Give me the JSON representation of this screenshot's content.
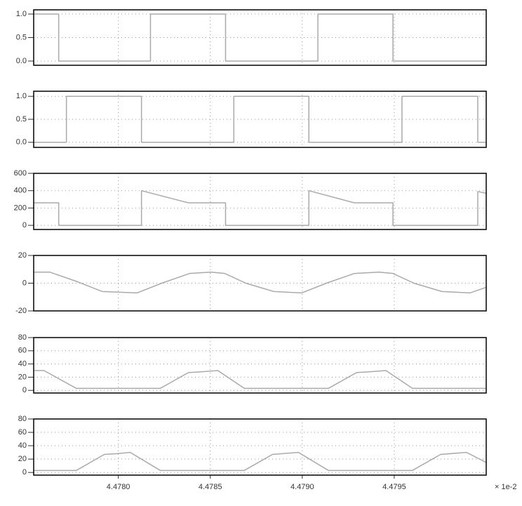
{
  "chart_data": [
    {
      "type": "line",
      "color": "#aaaaaa",
      "xlim": [
        4.47754,
        4.48
      ],
      "ylim": [
        -0.09,
        1.09
      ],
      "yticks": [
        {
          "value": 1,
          "label": "1.0"
        },
        {
          "value": 0.5,
          "label": "0.5"
        },
        {
          "value": 0,
          "label": "0.0"
        }
      ],
      "x": [
        4.47754,
        4.477676,
        4.477676,
        4.478175,
        4.478175,
        4.478583,
        4.478583,
        4.479085,
        4.479085,
        4.479493,
        4.479493,
        4.48
      ],
      "values": [
        1,
        1,
        0,
        0,
        1,
        1,
        0,
        0,
        1,
        1,
        0,
        0
      ]
    },
    {
      "type": "line",
      "color": "#aaaaaa",
      "xlim": [
        4.47754,
        4.48
      ],
      "ylim": [
        -0.11,
        1.11
      ],
      "yticks": [
        {
          "value": 1,
          "label": "1.0"
        },
        {
          "value": 0.5,
          "label": "0.5"
        },
        {
          "value": 0,
          "label": "0.0"
        }
      ],
      "x": [
        4.47754,
        4.477718,
        4.477718,
        4.478126,
        4.478126,
        4.478628,
        4.478628,
        4.479036,
        4.479036,
        4.479542,
        4.479542,
        4.479954,
        4.479954,
        4.48
      ],
      "values": [
        0,
        0,
        1,
        1,
        0,
        0,
        1,
        1,
        0,
        0,
        1,
        1,
        0,
        0
      ]
    },
    {
      "type": "line",
      "color": "#aaaaaa",
      "xlim": [
        4.47754,
        4.48
      ],
      "ylim": [
        -48,
        600
      ],
      "yticks": [
        600,
        400,
        200,
        0
      ],
      "x": [
        4.47754,
        4.477676,
        4.477676,
        4.478126,
        4.478126,
        4.478381,
        4.478583,
        4.478583,
        4.479036,
        4.479036,
        4.479283,
        4.479493,
        4.479493,
        4.479954,
        4.479954,
        4.48
      ],
      "values": [
        260,
        260,
        0,
        0,
        400,
        260,
        260,
        0,
        0,
        400,
        260,
        260,
        0,
        0,
        390,
        370
      ]
    },
    {
      "type": "line",
      "color": "#aaaaaa",
      "xlim": [
        4.47754,
        4.48
      ],
      "ylim": [
        -20,
        20
      ],
      "yticks": [
        20,
        0,
        -20
      ],
      "x": [
        4.47754,
        4.477627,
        4.477779,
        4.477912,
        4.478103,
        4.478236,
        4.478388,
        4.478503,
        4.478579,
        4.478693,
        4.478845,
        4.478998,
        4.479131,
        4.479283,
        4.479417,
        4.479493,
        4.479607,
        4.479759,
        4.479912,
        4.48
      ],
      "values": [
        8,
        8,
        1,
        -6,
        -7,
        0,
        7,
        8,
        7,
        0,
        -6,
        -7,
        0,
        7,
        8,
        7,
        0,
        -6,
        -7,
        -3
      ]
    },
    {
      "type": "line",
      "color": "#aaaaaa",
      "xlim": [
        4.47754,
        4.48
      ],
      "ylim": [
        -4,
        80
      ],
      "yticks": [
        80,
        60,
        40,
        20,
        0
      ],
      "x": [
        4.47754,
        4.477596,
        4.477772,
        4.478228,
        4.478381,
        4.478446,
        4.478541,
        4.478685,
        4.479142,
        4.479295,
        4.479359,
        4.479455,
        4.479599,
        4.48
      ],
      "values": [
        30,
        30,
        3,
        3,
        27,
        28,
        30,
        3,
        3,
        27,
        28,
        30,
        3,
        3
      ]
    },
    {
      "type": "line",
      "color": "#aaaaaa",
      "xlim": [
        4.47754,
        4.48
      ],
      "ylim": [
        -4,
        80
      ],
      "yticks": [
        80,
        60,
        40,
        20,
        0
      ],
      "xticks": [
        {
          "value": 4.478,
          "label": "4.4780"
        },
        {
          "value": 4.4785,
          "label": "4.4785"
        },
        {
          "value": 4.479,
          "label": "4.4790"
        },
        {
          "value": 4.4795,
          "label": "4.4795"
        }
      ],
      "x_scale_label": "× 1e-2",
      "x": [
        4.47754,
        4.477772,
        4.477924,
        4.477989,
        4.478065,
        4.478228,
        4.478685,
        4.478838,
        4.478979,
        4.479142,
        4.479599,
        4.479752,
        4.479893,
        4.48
      ],
      "values": [
        3,
        3,
        27,
        28,
        30,
        3,
        3,
        27,
        30,
        3,
        3,
        27,
        30,
        15
      ]
    }
  ]
}
